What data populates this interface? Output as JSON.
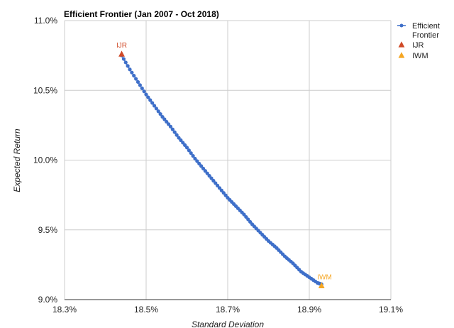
{
  "chart_data": {
    "type": "scatter",
    "title": "Efficient Frontier (Jan 2007 - Oct 2018)",
    "xlabel": "Standard Deviation",
    "ylabel": "Expected Return",
    "xlim": [
      18.3,
      19.1
    ],
    "ylim": [
      9.0,
      11.0
    ],
    "x_ticks": [
      "18.3%",
      "18.5%",
      "18.7%",
      "18.9%",
      "19.1%"
    ],
    "y_ticks": [
      "9.0%",
      "9.5%",
      "10.0%",
      "10.5%",
      "11.0%"
    ],
    "grid": true,
    "legend_position": "right",
    "series": [
      {
        "name": "Efficient Frontier",
        "color": "#3e6fc9",
        "marker": "circle",
        "line": true,
        "points": [
          [
            18.44,
            10.75
          ],
          [
            18.46,
            10.65
          ],
          [
            18.48,
            10.56
          ],
          [
            18.5,
            10.47
          ],
          [
            18.52,
            10.39
          ],
          [
            18.54,
            10.31
          ],
          [
            18.56,
            10.24
          ],
          [
            18.58,
            10.16
          ],
          [
            18.6,
            10.09
          ],
          [
            18.62,
            10.01
          ],
          [
            18.64,
            9.94
          ],
          [
            18.66,
            9.87
          ],
          [
            18.68,
            9.8
          ],
          [
            18.7,
            9.73
          ],
          [
            18.72,
            9.67
          ],
          [
            18.74,
            9.61
          ],
          [
            18.76,
            9.54
          ],
          [
            18.78,
            9.48
          ],
          [
            18.8,
            9.42
          ],
          [
            18.82,
            9.37
          ],
          [
            18.84,
            9.31
          ],
          [
            18.86,
            9.26
          ],
          [
            18.88,
            9.2
          ],
          [
            18.9,
            9.16
          ],
          [
            18.92,
            9.12
          ],
          [
            18.93,
            9.11
          ]
        ]
      },
      {
        "name": "IJR",
        "color": "#d04a28",
        "marker": "triangle",
        "points": [
          [
            18.44,
            10.76
          ]
        ],
        "point_label": "IJR"
      },
      {
        "name": "IWM",
        "color": "#f5a623",
        "marker": "triangle",
        "points": [
          [
            18.93,
            9.1
          ]
        ],
        "point_label": "IWM"
      }
    ]
  }
}
